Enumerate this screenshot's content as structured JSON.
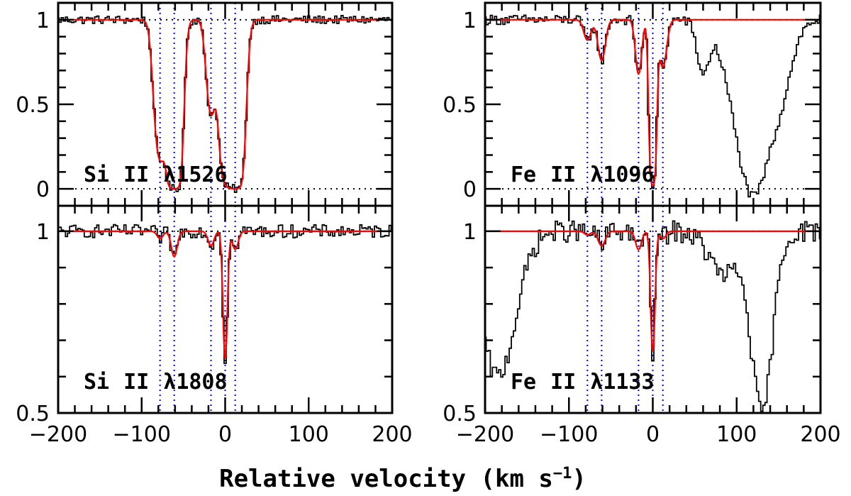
{
  "chart_data": {
    "type": "line",
    "xlabel": "Relative velocity (km s",
    "xlabel_superscript": "−1",
    "xlabel_close": ")",
    "xlim": [
      -200,
      200
    ],
    "x_ticks": [
      -200,
      -100,
      0,
      100,
      200
    ],
    "x_tick_labels": [
      "−200",
      "−100",
      "0",
      "100",
      "200"
    ],
    "component_velocities": [
      -78,
      -61,
      -17,
      0,
      12
    ],
    "colors": {
      "data": "#000000",
      "model": "#ff0000",
      "components": "#0000ff",
      "continuum": "#000000"
    },
    "panels": [
      {
        "id": "si-1526",
        "label": "Si II λ1526",
        "label_parts": [
          "Si",
          "II",
          "λ",
          "1526"
        ],
        "ylim": [
          -0.1,
          1.1
        ],
        "y_ticks": [
          0,
          0.5,
          1
        ],
        "y_tick_labels": [
          "0",
          "0.5",
          "1"
        ],
        "reference_lines": [
          0,
          1
        ],
        "model": {
          "depth": [
            0.82,
            1.0,
            0.55,
            0.92,
            1.0
          ],
          "width": [
            8,
            8,
            7,
            8,
            9
          ]
        },
        "noise": 0.025,
        "extra_absorption": []
      },
      {
        "id": "fe-1096",
        "label": "Fe II λ1096",
        "label_parts": [
          "Fe",
          "II",
          "λ",
          "1096"
        ],
        "ylim": [
          -0.1,
          1.1
        ],
        "y_ticks": [
          0,
          0.5,
          1
        ],
        "y_tick_labels": [
          "0",
          "0.5",
          "1"
        ],
        "reference_lines": [
          0,
          1
        ],
        "model": {
          "depth": [
            0.12,
            0.24,
            0.32,
            0.98,
            0.28
          ],
          "width": [
            6,
            6,
            5,
            4,
            6
          ]
        },
        "noise": 0.03,
        "extra_absorption": [
          {
            "center": 60,
            "depth": 0.3,
            "width": 10
          },
          {
            "center": 120,
            "depth": 1.05,
            "width": 32
          },
          {
            "center": 150,
            "depth": 0.3,
            "width": 20
          }
        ]
      },
      {
        "id": "si-1808",
        "label": "Si II λ1808",
        "label_parts": [
          "Si",
          "II",
          "λ",
          "1808"
        ],
        "ylim": [
          0.5,
          1.07
        ],
        "y_ticks": [
          0.5,
          1
        ],
        "y_tick_labels": [
          "0.5",
          "1"
        ],
        "reference_lines": [
          1
        ],
        "model": {
          "depth": [
            0.02,
            0.07,
            0.04,
            0.35,
            0.05
          ],
          "width": [
            5,
            5,
            5,
            3.5,
            5
          ]
        },
        "noise": 0.018,
        "extra_absorption": []
      },
      {
        "id": "fe-1133",
        "label": "Fe II λ1133",
        "label_parts": [
          "Fe",
          "II",
          "λ",
          "1133"
        ],
        "ylim": [
          0.5,
          1.07
        ],
        "y_ticks": [
          0.5,
          1
        ],
        "y_tick_labels": [
          "0.5",
          "1"
        ],
        "reference_lines": [
          1
        ],
        "model": {
          "depth": [
            0.01,
            0.04,
            0.05,
            0.33,
            0.02
          ],
          "width": [
            5,
            6,
            5,
            3.5,
            5
          ]
        },
        "noise": 0.03,
        "extra_absorption": [
          {
            "center": -185,
            "depth": 0.4,
            "width": 30
          },
          {
            "center": 85,
            "depth": 0.12,
            "width": 25
          },
          {
            "center": 130,
            "depth": 0.5,
            "width": 18
          }
        ]
      }
    ]
  }
}
